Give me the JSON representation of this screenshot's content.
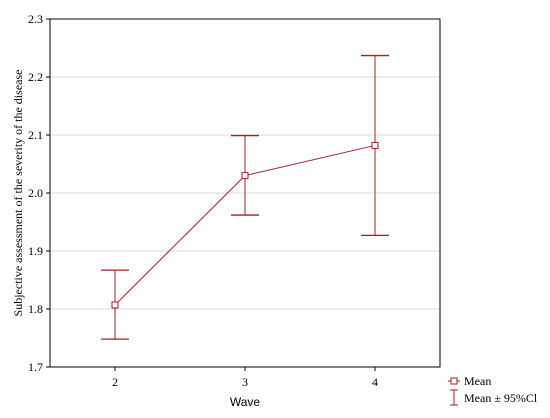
{
  "colors": {
    "series": "#a31f23",
    "grid": "#d9d9d9",
    "axis": "#000000",
    "background": "#ffffff"
  },
  "chart_data": {
    "type": "line",
    "title": "",
    "xlabel": "Wave",
    "ylabel": "Subjective assessment of the severity of the disease",
    "x": [
      "2",
      "3",
      "4"
    ],
    "xlim": [
      1.5,
      4.5
    ],
    "ylim": [
      1.7,
      2.3
    ],
    "yticks": [
      "1.7",
      "1.8",
      "1.9",
      "2.0",
      "2.1",
      "2.2",
      "2.3"
    ],
    "grid": "horizontal",
    "legend_position": "bottom-right",
    "series": [
      {
        "name": "Mean",
        "values": [
          1.807,
          2.03,
          2.082
        ],
        "marker": "square-open"
      },
      {
        "name": "Mean ± 95%Cl",
        "kind": "error-bars",
        "lower": [
          1.748,
          1.962,
          1.927
        ],
        "upper": [
          1.867,
          2.099,
          2.237
        ]
      }
    ]
  }
}
